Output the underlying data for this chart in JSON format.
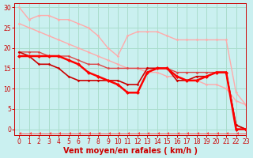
{
  "bg_color": "#caf0f0",
  "grid_color": "#aaddcc",
  "xlabel": "Vent moyen/en rafales ( km/h )",
  "xlabel_color": "#cc0000",
  "xlabel_fontsize": 7,
  "tick_color": "#cc0000",
  "tick_fontsize": 5.5,
  "xlim": [
    -0.5,
    23
  ],
  "ylim": [
    -1.5,
    31
  ],
  "yticks": [
    0,
    5,
    10,
    15,
    20,
    25,
    30
  ],
  "xticks": [
    0,
    1,
    2,
    3,
    4,
    5,
    6,
    7,
    8,
    9,
    10,
    11,
    12,
    13,
    14,
    15,
    16,
    17,
    18,
    19,
    20,
    21,
    22,
    23
  ],
  "lines": [
    {
      "x": [
        0,
        1,
        2,
        3,
        4,
        5,
        6,
        7,
        8,
        9,
        10,
        11,
        12,
        13,
        14,
        15,
        16,
        17,
        18,
        19,
        20,
        21,
        22,
        23
      ],
      "y": [
        30,
        27,
        28,
        28,
        27,
        27,
        26,
        25,
        23,
        20,
        18,
        23,
        24,
        24,
        24,
        23,
        22,
        22,
        22,
        22,
        22,
        22,
        9,
        6
      ],
      "color": "#ffaaaa",
      "lw": 1.0,
      "marker": "D",
      "ms": 1.8,
      "zorder": 2
    },
    {
      "x": [
        0,
        1,
        2,
        3,
        4,
        5,
        6,
        7,
        8,
        9,
        10,
        11,
        12,
        13,
        14,
        15,
        16,
        17,
        18,
        19,
        20,
        21,
        22,
        23
      ],
      "y": [
        26,
        25,
        24,
        23,
        22,
        21,
        20,
        19,
        18,
        17,
        16,
        15,
        15,
        14,
        14,
        13,
        13,
        12,
        12,
        11,
        11,
        10,
        7,
        6
      ],
      "color": "#ffaaaa",
      "lw": 1.0,
      "marker": "D",
      "ms": 1.8,
      "zorder": 2
    },
    {
      "x": [
        0,
        1,
        2,
        3,
        4,
        5,
        6,
        7,
        8,
        9,
        10,
        11,
        12,
        13,
        14,
        15,
        16,
        17,
        18,
        19,
        20,
        21,
        22,
        23
      ],
      "y": [
        19,
        19,
        19,
        18,
        18,
        18,
        17,
        16,
        16,
        15,
        15,
        15,
        15,
        15,
        15,
        15,
        14,
        14,
        14,
        14,
        14,
        14,
        1,
        0
      ],
      "color": "#dd4444",
      "lw": 1.0,
      "marker": "D",
      "ms": 1.8,
      "zorder": 3
    },
    {
      "x": [
        0,
        1,
        2,
        3,
        4,
        5,
        6,
        7,
        8,
        9,
        10,
        11,
        12,
        13,
        14,
        15,
        16,
        17,
        18,
        19,
        20,
        21,
        22,
        23
      ],
      "y": [
        19,
        18,
        16,
        16,
        15,
        13,
        12,
        12,
        12,
        12,
        12,
        11,
        11,
        15,
        15,
        15,
        12,
        12,
        13,
        13,
        14,
        14,
        1,
        0
      ],
      "color": "#cc0000",
      "lw": 1.2,
      "marker": "D",
      "ms": 1.8,
      "zorder": 4
    },
    {
      "x": [
        0,
        1,
        2,
        3,
        4,
        5,
        6,
        7,
        8,
        9,
        10,
        11,
        12,
        13,
        14,
        15,
        16,
        17,
        18,
        19,
        20,
        21,
        22,
        23
      ],
      "y": [
        18,
        18,
        18,
        18,
        18,
        17,
        16,
        14,
        13,
        12,
        11,
        9,
        9,
        14,
        15,
        15,
        13,
        12,
        12,
        13,
        14,
        14,
        0,
        0
      ],
      "color": "#ff0000",
      "lw": 1.8,
      "marker": "D",
      "ms": 2.5,
      "zorder": 5
    },
    {
      "x": [
        0,
        1,
        2,
        3,
        4,
        5,
        6,
        7,
        8,
        9,
        10,
        11,
        12,
        13,
        14,
        15,
        16,
        17,
        18,
        19,
        20,
        21,
        22,
        23
      ],
      "y": [
        -1,
        -1,
        -1,
        -1,
        -1,
        -1,
        -1,
        -1,
        -1,
        -1,
        -1,
        -1,
        -1,
        -1,
        -1,
        -1,
        -1,
        -1,
        -1,
        -1,
        -1,
        -1,
        -1,
        -1
      ],
      "color": "#ff4444",
      "lw": 0.6,
      "marker": 4,
      "ms": 3,
      "zorder": 2
    }
  ]
}
